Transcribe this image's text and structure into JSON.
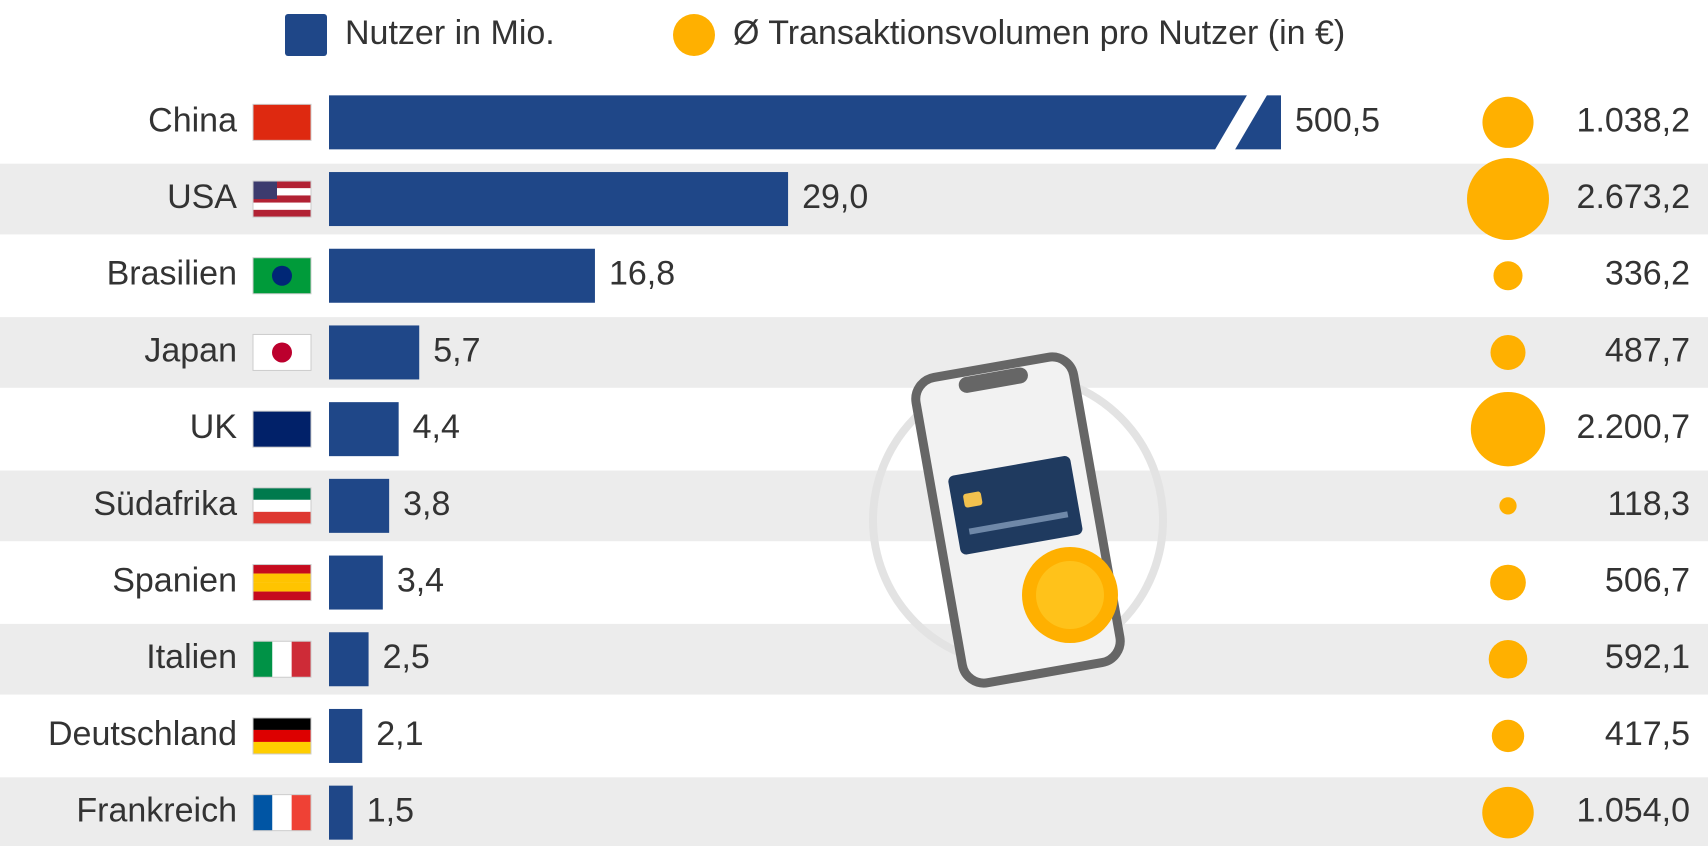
{
  "chart_data": {
    "type": "bar",
    "categories": [
      "China",
      "USA",
      "Brasilien",
      "Japan",
      "UK",
      "Südafrika",
      "Spanien",
      "Italien",
      "Deutschland",
      "Frankreich"
    ],
    "series": [
      {
        "name": "Nutzer in Mio.",
        "color": "#1f4788",
        "values": [
          500.5,
          29.0,
          16.8,
          5.7,
          4.4,
          3.8,
          3.4,
          2.5,
          2.1,
          1.5
        ],
        "value_labels": [
          "500,5",
          "29,0",
          "16,8",
          "5,7",
          "4,4",
          "3,8",
          "3,4",
          "2,5",
          "2,1",
          "1,5"
        ]
      },
      {
        "name": "Ø Transaktionsvolumen pro Nutzer (in €)",
        "color": "#ffb000",
        "type": "bubble",
        "values": [
          1038.2,
          2673.2,
          336.2,
          487.7,
          2200.7,
          118.3,
          506.7,
          592.1,
          417.5,
          1054.0
        ],
        "value_labels": [
          "1.038,2",
          "2.673,2",
          "336,2",
          "487,7",
          "2.200,7",
          "118,3",
          "506,7",
          "592,1",
          "417,5",
          "1.054,0"
        ]
      }
    ]
  }
}
